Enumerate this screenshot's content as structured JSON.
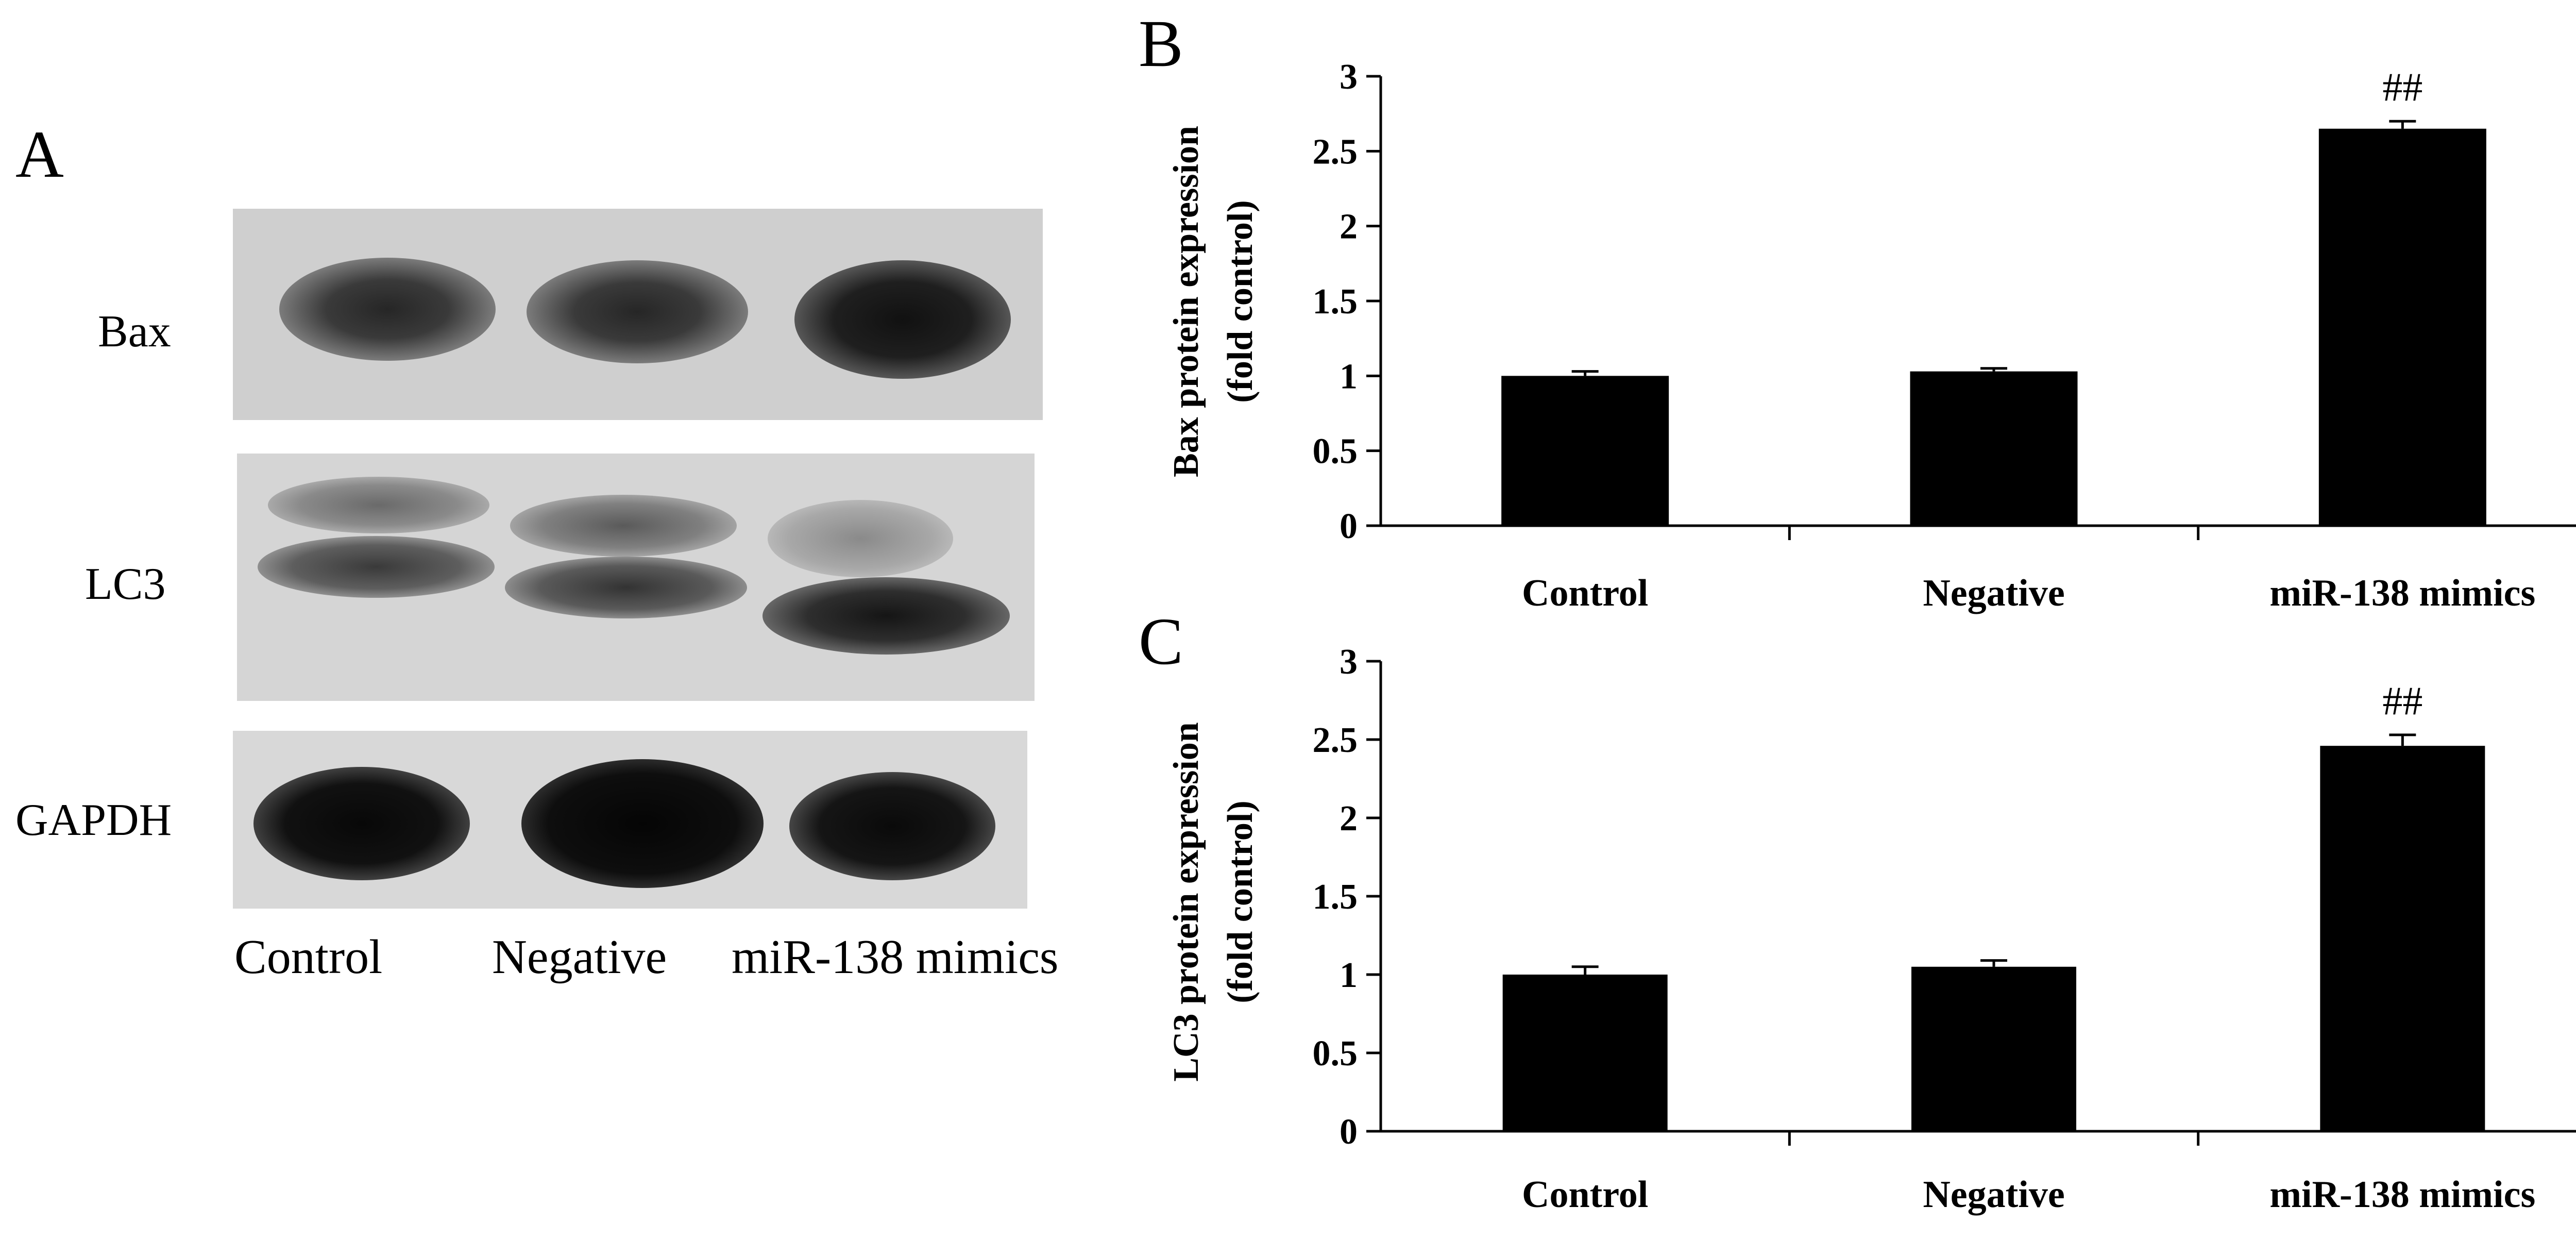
{
  "panels": {
    "a": {
      "letter": "A",
      "rows": [
        "Bax",
        "LC3",
        "GAPDH"
      ],
      "lanes": [
        "Control",
        "Negative",
        "miR-138 mimics"
      ]
    },
    "b": {
      "letter": "B"
    },
    "c": {
      "letter": "C"
    }
  },
  "chart_data": [
    {
      "type": "bar",
      "panel": "B",
      "categories": [
        "Control",
        "Negative",
        "miR-138 mimics"
      ],
      "values": [
        1.0,
        1.03,
        2.65
      ],
      "errors": [
        0.03,
        0.02,
        0.05
      ],
      "annotations": [
        "",
        "",
        "##"
      ],
      "xlabel": "",
      "ylabel": "Bax protein expression",
      "ylabel2": "(fold control)",
      "ylim": [
        0,
        3
      ],
      "yticks": [
        "0",
        "0.5",
        "1",
        "1.5",
        "2",
        "2.5",
        "3"
      ],
      "bar_color": "#000000",
      "grid": false
    },
    {
      "type": "bar",
      "panel": "C",
      "categories": [
        "Control",
        "Negative",
        "miR-138 mimics"
      ],
      "values": [
        1.0,
        1.05,
        2.46
      ],
      "errors": [
        0.05,
        0.04,
        0.07
      ],
      "annotations": [
        "",
        "",
        "##"
      ],
      "xlabel": "",
      "ylabel": "LC3 protein expression",
      "ylabel2": "(fold control)",
      "ylim": [
        0,
        3
      ],
      "yticks": [
        "0",
        "0.5",
        "1",
        "1.5",
        "2",
        "2.5",
        "3"
      ],
      "bar_color": "#000000",
      "grid": false
    }
  ]
}
